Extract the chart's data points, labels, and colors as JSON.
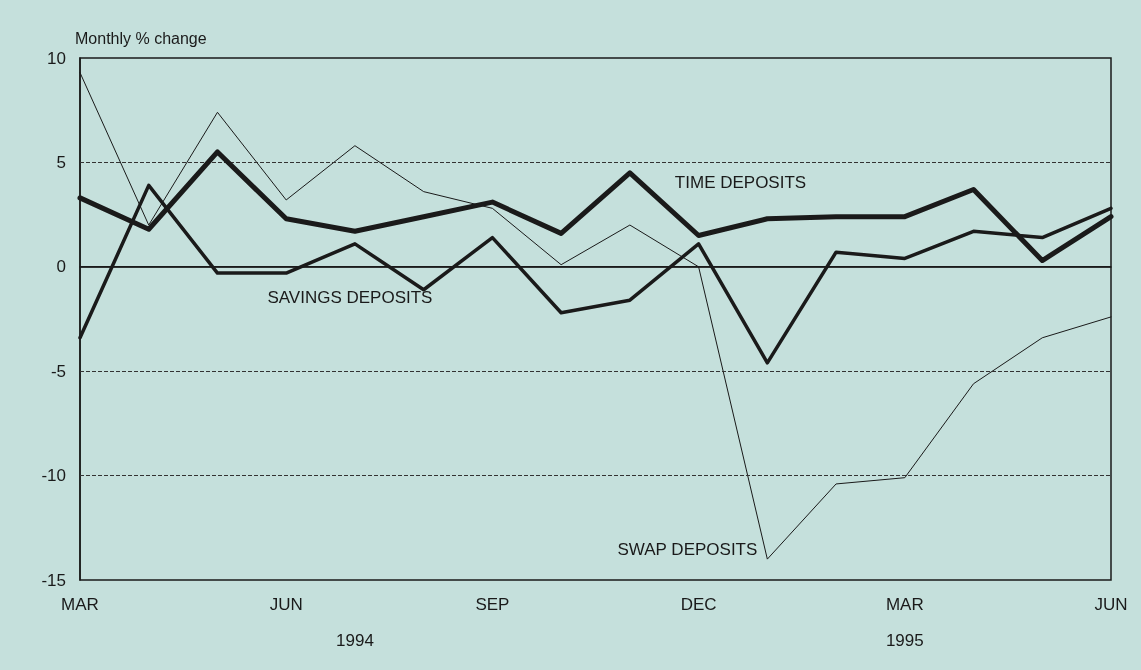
{
  "chart_data": {
    "type": "line",
    "ylabel": "Monthly % change",
    "categories": [
      "MAR",
      null,
      null,
      "JUN",
      null,
      null,
      "SEP",
      null,
      null,
      "DEC",
      null,
      null,
      "MAR",
      null,
      null,
      "JUN"
    ],
    "series": [
      {
        "name": "TIME DEPOSITS",
        "color": "#1a1a1a",
        "values": [
          3.3,
          1.8,
          5.5,
          2.3,
          1.7,
          2.4,
          3.1,
          1.6,
          4.5,
          1.5,
          2.3,
          2.4,
          2.4,
          3.7,
          0.3,
          2.4
        ]
      },
      {
        "name": "SAVINGS DEPOSITS",
        "color": "#1a1a1a",
        "values": [
          -3.4,
          3.9,
          -0.3,
          -0.3,
          1.1,
          -1.1,
          1.4,
          -2.2,
          -1.6,
          1.1,
          -4.6,
          0.7,
          0.4,
          1.7,
          1.4,
          2.8
        ]
      },
      {
        "name": "SWAP DEPOSITS",
        "color": "#1a1a1a",
        "values": [
          9.3,
          2.0,
          7.4,
          3.2,
          5.8,
          3.6,
          2.8,
          0.1,
          2.0,
          0.0,
          -14.0,
          -10.4,
          -10.1,
          -5.6,
          -3.4,
          -2.4
        ]
      }
    ],
    "ylim": [
      -15,
      10
    ],
    "yticks": [
      -15,
      -10,
      -5,
      0,
      5,
      10
    ],
    "grid": "y",
    "ref_lines": [
      {
        "axis": "y",
        "value": 0,
        "color": "#1a1a1a",
        "line_style": "solid"
      }
    ],
    "annotations": [
      "1994",
      "1995"
    ],
    "marker": "none",
    "line_style": "solid",
    "legend": false
  }
}
